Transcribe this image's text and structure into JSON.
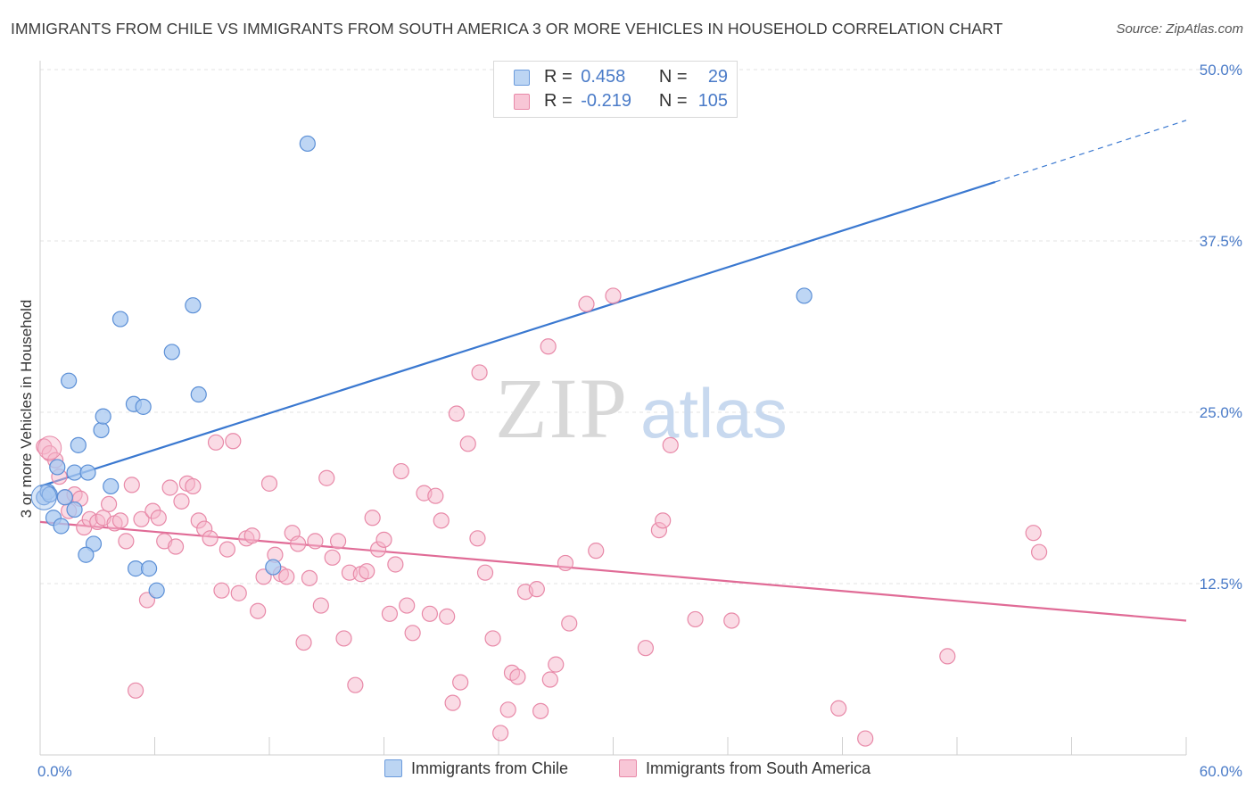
{
  "title": "IMMIGRANTS FROM CHILE VS IMMIGRANTS FROM SOUTH AMERICA 3 OR MORE VEHICLES IN HOUSEHOLD CORRELATION CHART",
  "source": "Source: ZipAtlas.com",
  "watermark": {
    "zip": "ZIP",
    "atlas": "atlas"
  },
  "legend": {
    "chile": {
      "r_label": "R =",
      "r_value": "0.458",
      "n_label": "N =",
      "n_value": "29"
    },
    "south_america": {
      "r_label": "R =",
      "r_value": "-0.219",
      "n_label": "N =",
      "n_value": "105"
    }
  },
  "colors": {
    "chile_fill": "#a8c8f0",
    "chile_stroke": "#5b8fd6",
    "chile_line": "#3a78d0",
    "sa_fill": "#f6b8cb",
    "sa_stroke": "#e889a8",
    "sa_line": "#e06b96",
    "tick_text": "#4a7bc8",
    "grid": "#e3e3e3"
  },
  "chart_data": {
    "type": "scatter",
    "xlabel": "",
    "ylabel": "3 or more Vehicles in Household",
    "xlim": [
      0,
      60
    ],
    "ylim": [
      0,
      50
    ],
    "x_tick_labels": [
      {
        "value": 0,
        "label": "0.0%"
      },
      {
        "value": 60,
        "label": "60.0%"
      }
    ],
    "y_tick_labels": [
      {
        "value": 12.5,
        "label": "12.5%"
      },
      {
        "value": 25.0,
        "label": "25.0%"
      },
      {
        "value": 37.5,
        "label": "37.5%"
      },
      {
        "value": 50.0,
        "label": "50.0%"
      }
    ],
    "grid": true,
    "legend_position": "top-center",
    "series": [
      {
        "name": "Immigrants from Chile",
        "key": "chile",
        "trend": {
          "x0": 0,
          "y0": 19.6,
          "x1": 50.0,
          "y1": 41.8,
          "dashed_to_x": 60,
          "dashed_to_y": 46.3
        },
        "points": [
          [
            0.2,
            18.8
          ],
          [
            0.4,
            19.2
          ],
          [
            0.5,
            19.0
          ],
          [
            0.7,
            17.3
          ],
          [
            0.9,
            21.0
          ],
          [
            1.1,
            16.7
          ],
          [
            1.3,
            18.8
          ],
          [
            1.5,
            27.3
          ],
          [
            1.8,
            17.9
          ],
          [
            2.0,
            22.6
          ],
          [
            1.8,
            20.6
          ],
          [
            2.5,
            20.6
          ],
          [
            2.8,
            15.4
          ],
          [
            2.4,
            14.6
          ],
          [
            3.2,
            23.7
          ],
          [
            3.3,
            24.7
          ],
          [
            3.7,
            19.6
          ],
          [
            4.2,
            31.8
          ],
          [
            4.9,
            25.6
          ],
          [
            5.4,
            25.4
          ],
          [
            5.0,
            13.6
          ],
          [
            5.7,
            13.6
          ],
          [
            6.1,
            12.0
          ],
          [
            6.9,
            29.4
          ],
          [
            8.0,
            32.8
          ],
          [
            8.3,
            26.3
          ],
          [
            12.2,
            13.7
          ],
          [
            14.0,
            44.6
          ],
          [
            40.0,
            33.5
          ]
        ]
      },
      {
        "name": "Immigrants from South America",
        "key": "sa",
        "trend": {
          "x0": 0,
          "y0": 17.0,
          "x1": 60,
          "y1": 9.8
        },
        "points": [
          [
            0.2,
            22.5
          ],
          [
            0.5,
            22.0
          ],
          [
            0.8,
            21.5
          ],
          [
            1.0,
            20.3
          ],
          [
            1.3,
            18.8
          ],
          [
            1.5,
            17.8
          ],
          [
            1.8,
            19.0
          ],
          [
            2.1,
            18.7
          ],
          [
            2.3,
            16.6
          ],
          [
            2.6,
            17.2
          ],
          [
            3.0,
            17.0
          ],
          [
            3.3,
            17.3
          ],
          [
            3.6,
            18.3
          ],
          [
            3.9,
            16.9
          ],
          [
            4.2,
            17.1
          ],
          [
            4.5,
            15.6
          ],
          [
            4.8,
            19.7
          ],
          [
            5.0,
            4.7
          ],
          [
            5.3,
            17.2
          ],
          [
            5.6,
            11.3
          ],
          [
            5.9,
            17.8
          ],
          [
            6.2,
            17.3
          ],
          [
            6.5,
            15.6
          ],
          [
            6.8,
            19.5
          ],
          [
            7.1,
            15.2
          ],
          [
            7.4,
            18.5
          ],
          [
            7.7,
            19.8
          ],
          [
            8.0,
            19.6
          ],
          [
            8.3,
            17.1
          ],
          [
            8.6,
            16.5
          ],
          [
            8.9,
            15.8
          ],
          [
            9.2,
            22.8
          ],
          [
            9.5,
            12.0
          ],
          [
            9.8,
            15.0
          ],
          [
            10.1,
            22.9
          ],
          [
            10.4,
            11.8
          ],
          [
            10.8,
            15.8
          ],
          [
            11.1,
            16.0
          ],
          [
            11.4,
            10.5
          ],
          [
            11.7,
            13.0
          ],
          [
            12.0,
            19.8
          ],
          [
            12.3,
            14.6
          ],
          [
            12.6,
            13.2
          ],
          [
            12.9,
            13.0
          ],
          [
            13.2,
            16.2
          ],
          [
            13.5,
            15.4
          ],
          [
            13.8,
            8.2
          ],
          [
            14.1,
            12.9
          ],
          [
            14.4,
            15.6
          ],
          [
            14.7,
            10.9
          ],
          [
            15.0,
            20.2
          ],
          [
            15.3,
            14.4
          ],
          [
            15.6,
            15.6
          ],
          [
            15.9,
            8.5
          ],
          [
            16.2,
            13.3
          ],
          [
            16.5,
            5.1
          ],
          [
            16.8,
            13.2
          ],
          [
            17.1,
            13.4
          ],
          [
            17.4,
            17.3
          ],
          [
            17.7,
            15.0
          ],
          [
            18.0,
            15.7
          ],
          [
            18.3,
            10.3
          ],
          [
            18.6,
            13.9
          ],
          [
            18.9,
            20.7
          ],
          [
            19.2,
            10.9
          ],
          [
            19.5,
            8.9
          ],
          [
            20.1,
            19.1
          ],
          [
            20.4,
            10.3
          ],
          [
            20.7,
            18.9
          ],
          [
            21.0,
            17.1
          ],
          [
            21.3,
            10.1
          ],
          [
            21.6,
            3.8
          ],
          [
            22.0,
            5.3
          ],
          [
            22.4,
            22.7
          ],
          [
            22.9,
            15.8
          ],
          [
            23.3,
            13.3
          ],
          [
            23.7,
            8.5
          ],
          [
            24.1,
            1.6
          ],
          [
            24.5,
            3.3
          ],
          [
            24.7,
            6.0
          ],
          [
            25.0,
            5.7
          ],
          [
            25.4,
            11.9
          ],
          [
            26.2,
            3.2
          ],
          [
            26.7,
            5.5
          ],
          [
            27.0,
            6.6
          ],
          [
            27.5,
            14.0
          ],
          [
            27.7,
            9.6
          ],
          [
            28.6,
            32.9
          ],
          [
            29.1,
            14.9
          ],
          [
            30.0,
            33.5
          ],
          [
            23.0,
            27.9
          ],
          [
            21.8,
            24.9
          ],
          [
            26.6,
            29.8
          ],
          [
            31.7,
            7.8
          ],
          [
            32.4,
            16.4
          ],
          [
            32.6,
            17.1
          ],
          [
            33.0,
            22.6
          ],
          [
            34.3,
            9.9
          ],
          [
            36.2,
            9.8
          ],
          [
            41.8,
            3.4
          ],
          [
            43.2,
            1.2
          ],
          [
            47.5,
            7.2
          ],
          [
            52.0,
            16.2
          ],
          [
            52.3,
            14.8
          ],
          [
            26.0,
            12.1
          ]
        ]
      }
    ]
  },
  "bottom_legend": {
    "chile_label": "Immigrants from Chile",
    "sa_label": "Immigrants from South America"
  }
}
